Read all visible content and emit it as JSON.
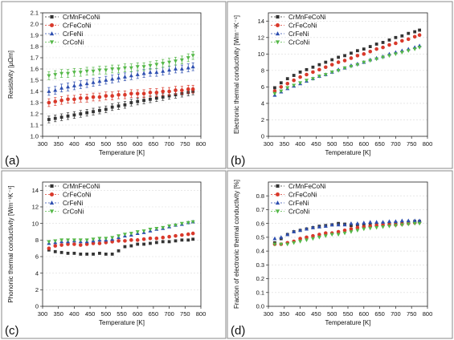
{
  "chart_data": [
    {
      "panel_label": "(a)",
      "type": "scatter",
      "xlabel": "Temperature [K]",
      "ylabel": "Resistivity [μΩm]",
      "xlim": [
        300,
        800
      ],
      "ylim": [
        1.0,
        2.1
      ],
      "xticks": [
        300,
        350,
        400,
        450,
        500,
        550,
        600,
        650,
        700,
        750,
        800
      ],
      "yticks": [
        1.0,
        1.1,
        1.2,
        1.3,
        1.4,
        1.5,
        1.6,
        1.7,
        1.8,
        1.9,
        2.0,
        2.1
      ],
      "ytick_decimals": 1,
      "grid": "horizontal dashed",
      "legend_position": "top-left",
      "error_bars": true,
      "x": [
        320,
        340,
        360,
        380,
        400,
        420,
        440,
        460,
        480,
        500,
        520,
        540,
        560,
        580,
        600,
        620,
        640,
        660,
        680,
        700,
        720,
        740,
        760,
        775
      ],
      "series": [
        {
          "name": "CrMnFeCoNi",
          "marker": "square",
          "color": "#333333",
          "error": 0.03,
          "values": [
            1.15,
            1.16,
            1.17,
            1.18,
            1.19,
            1.2,
            1.21,
            1.22,
            1.23,
            1.24,
            1.26,
            1.27,
            1.28,
            1.3,
            1.31,
            1.32,
            1.33,
            1.34,
            1.35,
            1.36,
            1.37,
            1.38,
            1.39,
            1.4
          ]
        },
        {
          "name": "CrFeCoNi",
          "marker": "circle",
          "color": "#d9392b",
          "error": 0.035,
          "values": [
            1.3,
            1.31,
            1.32,
            1.33,
            1.33,
            1.34,
            1.34,
            1.35,
            1.35,
            1.36,
            1.36,
            1.37,
            1.37,
            1.38,
            1.38,
            1.38,
            1.39,
            1.39,
            1.4,
            1.4,
            1.41,
            1.41,
            1.42,
            1.42
          ]
        },
        {
          "name": "CrFeNi",
          "marker": "triangle",
          "color": "#2e4fb0",
          "error": 0.035,
          "values": [
            1.4,
            1.41,
            1.43,
            1.44,
            1.45,
            1.46,
            1.47,
            1.48,
            1.49,
            1.5,
            1.51,
            1.52,
            1.53,
            1.54,
            1.55,
            1.56,
            1.57,
            1.57,
            1.58,
            1.59,
            1.6,
            1.6,
            1.61,
            1.62
          ]
        },
        {
          "name": "CrCoNi",
          "marker": "triangle-down",
          "color": "#55b848",
          "error": 0.035,
          "values": [
            1.54,
            1.55,
            1.56,
            1.56,
            1.57,
            1.57,
            1.58,
            1.58,
            1.59,
            1.59,
            1.6,
            1.6,
            1.61,
            1.61,
            1.62,
            1.62,
            1.63,
            1.64,
            1.65,
            1.66,
            1.67,
            1.68,
            1.7,
            1.72
          ]
        }
      ]
    },
    {
      "panel_label": "(b)",
      "type": "scatter",
      "xlabel": "Temperature [K]",
      "ylabel": "Electronic thermal conductivity [Wm⁻¹K⁻¹]",
      "xlim": [
        300,
        800
      ],
      "ylim": [
        0,
        15
      ],
      "xticks": [
        300,
        350,
        400,
        450,
        500,
        550,
        600,
        650,
        700,
        750,
        800
      ],
      "yticks": [
        0,
        2,
        4,
        6,
        8,
        10,
        12,
        14
      ],
      "ytick_decimals": 0,
      "grid": "horizontal dashed",
      "legend_position": "top-left",
      "error_bars": false,
      "x": [
        320,
        340,
        360,
        380,
        400,
        420,
        440,
        460,
        480,
        500,
        520,
        540,
        560,
        580,
        600,
        620,
        640,
        660,
        680,
        700,
        720,
        740,
        760,
        775
      ],
      "series": [
        {
          "name": "CrMnFeCoNi",
          "marker": "square",
          "color": "#333333",
          "values": [
            5.9,
            6.5,
            7.0,
            7.4,
            7.8,
            8.1,
            8.4,
            8.7,
            9.0,
            9.3,
            9.6,
            9.8,
            10.1,
            10.4,
            10.6,
            10.9,
            11.2,
            11.4,
            11.7,
            12.0,
            12.2,
            12.5,
            12.7,
            12.9
          ]
        },
        {
          "name": "CrFeCoNi",
          "marker": "circle",
          "color": "#d9392b",
          "values": [
            5.5,
            6.0,
            6.4,
            6.8,
            7.2,
            7.5,
            7.8,
            8.1,
            8.4,
            8.7,
            9.0,
            9.2,
            9.5,
            9.8,
            10.0,
            10.3,
            10.6,
            10.8,
            11.1,
            11.3,
            11.6,
            11.8,
            12.1,
            12.3
          ]
        },
        {
          "name": "CrFeNi",
          "marker": "triangle",
          "color": "#2e4fb0",
          "values": [
            5.0,
            5.4,
            5.8,
            6.1,
            6.4,
            6.7,
            7.0,
            7.3,
            7.5,
            7.8,
            8.1,
            8.3,
            8.6,
            8.8,
            9.0,
            9.3,
            9.5,
            9.7,
            10.0,
            10.2,
            10.4,
            10.6,
            10.8,
            11.0
          ]
        },
        {
          "name": "CrCoNi",
          "marker": "triangle-down",
          "color": "#55b848",
          "values": [
            5.2,
            5.5,
            5.9,
            6.2,
            6.5,
            6.8,
            7.0,
            7.3,
            7.5,
            7.8,
            8.0,
            8.3,
            8.5,
            8.7,
            9.0,
            9.2,
            9.4,
            9.6,
            9.8,
            10.0,
            10.2,
            10.4,
            10.6,
            10.8
          ]
        }
      ]
    },
    {
      "panel_label": "(c)",
      "type": "scatter",
      "xlabel": "Temperature [K]",
      "ylabel": "Phononic thermal conductivity [Wm⁻¹K⁻¹]",
      "xlim": [
        300,
        800
      ],
      "ylim": [
        0,
        15
      ],
      "xticks": [
        300,
        350,
        400,
        450,
        500,
        550,
        600,
        650,
        700,
        750,
        800
      ],
      "yticks": [
        0,
        2,
        4,
        6,
        8,
        10,
        12,
        14
      ],
      "ytick_decimals": 0,
      "grid": "horizontal dashed",
      "legend_position": "top-left",
      "error_bars": false,
      "x": [
        320,
        340,
        360,
        380,
        400,
        420,
        440,
        460,
        480,
        500,
        520,
        540,
        560,
        580,
        600,
        620,
        640,
        660,
        680,
        700,
        720,
        740,
        760,
        775
      ],
      "series": [
        {
          "name": "CrMnFeCoNi",
          "marker": "square",
          "color": "#333333",
          "values": [
            6.8,
            6.6,
            6.5,
            6.4,
            6.4,
            6.3,
            6.3,
            6.3,
            6.4,
            6.3,
            6.3,
            6.7,
            7.2,
            7.3,
            7.5,
            7.5,
            7.6,
            7.7,
            7.8,
            7.8,
            7.9,
            8.0,
            8.0,
            8.1
          ]
        },
        {
          "name": "CrFeCoNi",
          "marker": "circle",
          "color": "#d9392b",
          "values": [
            7.0,
            7.3,
            7.4,
            7.5,
            7.5,
            7.4,
            7.5,
            7.6,
            7.6,
            7.7,
            7.8,
            7.9,
            7.9,
            8.0,
            8.0,
            8.1,
            8.2,
            8.2,
            8.3,
            8.4,
            8.5,
            8.6,
            8.7,
            8.8
          ]
        },
        {
          "name": "CrFeNi",
          "marker": "triangle",
          "color": "#2e4fb0",
          "values": [
            7.6,
            7.7,
            7.8,
            7.8,
            7.9,
            7.8,
            7.8,
            7.9,
            8.0,
            8.0,
            8.1,
            8.3,
            8.5,
            8.6,
            8.8,
            8.9,
            9.1,
            9.3,
            9.4,
            9.6,
            9.8,
            9.9,
            10.1,
            10.2
          ]
        },
        {
          "name": "CrCoNi",
          "marker": "triangle-down",
          "color": "#55b848",
          "values": [
            7.8,
            7.9,
            8.0,
            8.0,
            8.0,
            8.0,
            8.0,
            8.1,
            8.2,
            8.2,
            8.3,
            8.5,
            8.7,
            8.8,
            9.0,
            9.1,
            9.3,
            9.4,
            9.5,
            9.7,
            9.8,
            10.0,
            10.1,
            10.2
          ]
        }
      ]
    },
    {
      "panel_label": "(d)",
      "type": "scatter",
      "xlabel": "Temperature [K]",
      "ylabel": "Fraction of electronic thermal conductivity [%]",
      "xlim": [
        300,
        800
      ],
      "ylim": [
        0,
        0.9
      ],
      "xticks": [
        300,
        350,
        400,
        450,
        500,
        550,
        600,
        650,
        700,
        750,
        800
      ],
      "yticks": [
        0.0,
        0.1,
        0.2,
        0.3,
        0.4,
        0.5,
        0.6,
        0.7,
        0.8
      ],
      "ytick_decimals": 1,
      "grid": "horizontal dashed",
      "legend_position": "top-left",
      "error_bars": false,
      "x": [
        320,
        340,
        360,
        380,
        400,
        420,
        440,
        460,
        480,
        500,
        520,
        540,
        560,
        580,
        600,
        620,
        640,
        660,
        680,
        700,
        720,
        740,
        760,
        775
      ],
      "series": [
        {
          "name": "CrMnFeCoNi",
          "marker": "square",
          "color": "#333333",
          "values": [
            0.46,
            0.49,
            0.52,
            0.54,
            0.55,
            0.56,
            0.57,
            0.58,
            0.585,
            0.59,
            0.6,
            0.595,
            0.585,
            0.59,
            0.585,
            0.59,
            0.595,
            0.6,
            0.6,
            0.605,
            0.605,
            0.61,
            0.615,
            0.615
          ]
        },
        {
          "name": "CrFeCoNi",
          "marker": "circle",
          "color": "#d9392b",
          "values": [
            0.45,
            0.45,
            0.46,
            0.47,
            0.49,
            0.5,
            0.51,
            0.52,
            0.53,
            0.53,
            0.54,
            0.55,
            0.56,
            0.57,
            0.575,
            0.58,
            0.585,
            0.59,
            0.59,
            0.59,
            0.595,
            0.6,
            0.605,
            0.61
          ]
        },
        {
          "name": "CrFeNi",
          "marker": "triangle",
          "color": "#2e4fb0",
          "values": [
            0.49,
            0.5,
            0.52,
            0.54,
            0.55,
            0.56,
            0.57,
            0.575,
            0.58,
            0.59,
            0.59,
            0.59,
            0.6,
            0.6,
            0.605,
            0.61,
            0.61,
            0.61,
            0.615,
            0.615,
            0.62,
            0.62,
            0.62,
            0.62
          ]
        },
        {
          "name": "CrCoNi",
          "marker": "triangle-down",
          "color": "#55b848",
          "values": [
            0.45,
            0.45,
            0.45,
            0.46,
            0.47,
            0.48,
            0.49,
            0.5,
            0.51,
            0.52,
            0.52,
            0.53,
            0.54,
            0.55,
            0.56,
            0.565,
            0.57,
            0.575,
            0.58,
            0.585,
            0.59,
            0.595,
            0.6,
            0.6
          ]
        }
      ]
    }
  ]
}
